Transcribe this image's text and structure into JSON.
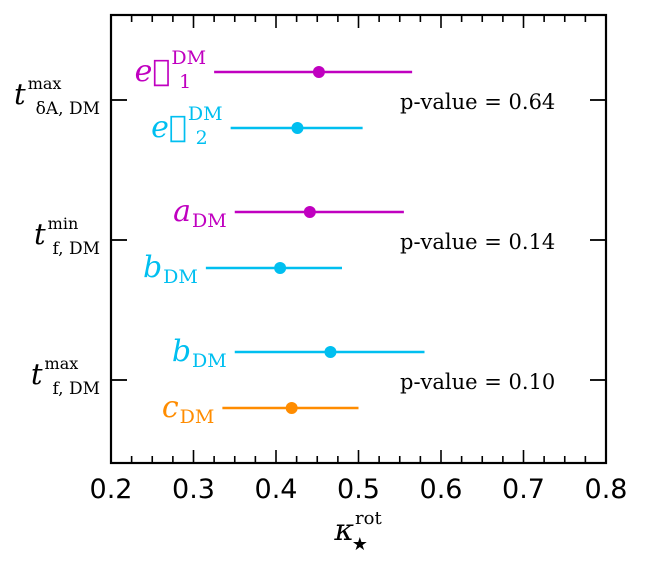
{
  "chart_data": {
    "type": "forest",
    "xlabel": "κ★rot",
    "xlabel_parts": {
      "base": "κ",
      "sup": "rot",
      "sub": "★"
    },
    "xlim": [
      0.2,
      0.8
    ],
    "x_ticks": [
      0.2,
      0.3,
      0.4,
      0.5,
      0.6,
      0.7,
      0.8
    ],
    "x_tick_labels": [
      "0.2",
      "0.3",
      "0.4",
      "0.5",
      "0.6",
      "0.7",
      "0.8"
    ],
    "colors": {
      "magenta": "#c000c0",
      "cyan": "#00bff0",
      "orange": "#ff8c00",
      "axis": "#000000"
    },
    "groups": [
      {
        "label": {
          "base": "t",
          "sup": "max",
          "sub": "δA, DM"
        },
        "pvalue_text": "p-value = 0.64",
        "rows": [
          {
            "name": {
              "base": "e⃗",
              "sup": "DM",
              "sub": "1"
            },
            "color": "#c000c0",
            "value": 0.452,
            "low": 0.325,
            "high": 0.565
          },
          {
            "name": {
              "base": "e⃗",
              "sup": "DM",
              "sub": "2"
            },
            "color": "#00bff0",
            "value": 0.426,
            "low": 0.345,
            "high": 0.505
          }
        ]
      },
      {
        "label": {
          "base": "t",
          "sup": "min",
          "sub": "f, DM"
        },
        "pvalue_text": "p-value = 0.14",
        "rows": [
          {
            "name": {
              "base": "a",
              "sup": "",
              "sub": "DM"
            },
            "color": "#c000c0",
            "value": 0.441,
            "low": 0.35,
            "high": 0.555
          },
          {
            "name": {
              "base": "b",
              "sup": "",
              "sub": "DM"
            },
            "color": "#00bff0",
            "value": 0.405,
            "low": 0.315,
            "high": 0.48
          }
        ]
      },
      {
        "label": {
          "base": "t",
          "sup": "max",
          "sub": "f, DM"
        },
        "pvalue_text": "p-value = 0.10",
        "rows": [
          {
            "name": {
              "base": "b",
              "sup": "",
              "sub": "DM"
            },
            "color": "#00bff0",
            "value": 0.466,
            "low": 0.35,
            "high": 0.58
          },
          {
            "name": {
              "base": "c",
              "sup": "",
              "sub": "DM"
            },
            "color": "#ff8c00",
            "value": 0.419,
            "low": 0.335,
            "high": 0.5
          }
        ]
      }
    ]
  }
}
